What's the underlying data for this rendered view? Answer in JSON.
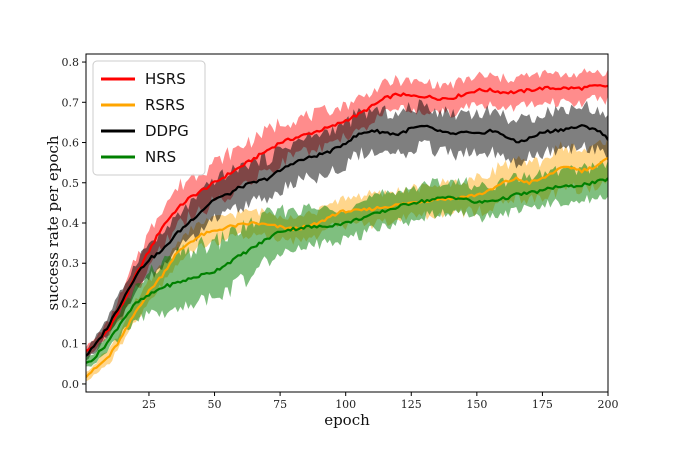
{
  "chart_data": {
    "type": "line",
    "title": "",
    "xlabel": "epoch",
    "ylabel": "success rate per epoch",
    "xlim": [
      1,
      200
    ],
    "ylim": [
      -0.02,
      0.82
    ],
    "xticks": [
      25,
      50,
      75,
      100,
      125,
      150,
      175,
      200
    ],
    "yticks": [
      0.0,
      0.1,
      0.2,
      0.3,
      0.4,
      0.5,
      0.6,
      0.7,
      0.8
    ],
    "xtick_labels": [
      "25",
      "50",
      "75",
      "100",
      "125",
      "150",
      "175",
      "200"
    ],
    "ytick_labels": [
      "0.0",
      "0.1",
      "0.2",
      "0.3",
      "0.4",
      "0.5",
      "0.6",
      "0.7",
      "0.8"
    ],
    "grid": false,
    "legend_position": "upper-left",
    "shaded_band": "mean ± std",
    "series": [
      {
        "name": "HSRS",
        "color": "#ff0000",
        "band_opacity": 0.45,
        "x": [
          1,
          5,
          10,
          15,
          20,
          25,
          30,
          35,
          40,
          45,
          50,
          55,
          60,
          65,
          70,
          75,
          80,
          85,
          90,
          95,
          100,
          105,
          110,
          115,
          120,
          125,
          130,
          135,
          140,
          145,
          150,
          155,
          160,
          165,
          170,
          175,
          180,
          185,
          190,
          195,
          200
        ],
        "mean": [
          0.08,
          0.1,
          0.14,
          0.2,
          0.27,
          0.33,
          0.39,
          0.43,
          0.46,
          0.48,
          0.5,
          0.52,
          0.54,
          0.56,
          0.58,
          0.6,
          0.61,
          0.62,
          0.63,
          0.64,
          0.655,
          0.67,
          0.69,
          0.71,
          0.72,
          0.715,
          0.715,
          0.71,
          0.71,
          0.72,
          0.73,
          0.73,
          0.725,
          0.725,
          0.73,
          0.735,
          0.735,
          0.735,
          0.735,
          0.74,
          0.74
        ],
        "std": [
          0.012,
          0.015,
          0.02,
          0.03,
          0.04,
          0.045,
          0.05,
          0.05,
          0.05,
          0.05,
          0.05,
          0.05,
          0.05,
          0.05,
          0.05,
          0.05,
          0.045,
          0.045,
          0.045,
          0.04,
          0.04,
          0.04,
          0.035,
          0.035,
          0.035,
          0.035,
          0.035,
          0.035,
          0.035,
          0.035,
          0.035,
          0.035,
          0.035,
          0.035,
          0.035,
          0.035,
          0.035,
          0.035,
          0.035,
          0.035,
          0.035
        ]
      },
      {
        "name": "RSRS",
        "color": "#ffa500",
        "band_opacity": 0.45,
        "x": [
          1,
          5,
          10,
          15,
          20,
          25,
          30,
          35,
          40,
          45,
          50,
          55,
          60,
          65,
          70,
          75,
          80,
          85,
          90,
          95,
          100,
          105,
          110,
          115,
          120,
          125,
          130,
          135,
          140,
          145,
          150,
          155,
          160,
          165,
          170,
          175,
          180,
          185,
          190,
          195,
          200
        ],
        "mean": [
          0.02,
          0.04,
          0.07,
          0.12,
          0.18,
          0.23,
          0.27,
          0.32,
          0.35,
          0.37,
          0.38,
          0.39,
          0.395,
          0.4,
          0.395,
          0.39,
          0.385,
          0.39,
          0.4,
          0.42,
          0.43,
          0.43,
          0.435,
          0.44,
          0.445,
          0.45,
          0.455,
          0.46,
          0.46,
          0.465,
          0.47,
          0.48,
          0.5,
          0.51,
          0.5,
          0.51,
          0.53,
          0.54,
          0.53,
          0.54,
          0.56
        ],
        "std": [
          0.01,
          0.015,
          0.02,
          0.02,
          0.025,
          0.025,
          0.025,
          0.025,
          0.03,
          0.03,
          0.03,
          0.03,
          0.03,
          0.03,
          0.03,
          0.03,
          0.03,
          0.03,
          0.03,
          0.03,
          0.035,
          0.035,
          0.035,
          0.035,
          0.035,
          0.035,
          0.035,
          0.04,
          0.04,
          0.04,
          0.04,
          0.045,
          0.045,
          0.045,
          0.045,
          0.045,
          0.05,
          0.05,
          0.05,
          0.05,
          0.05
        ]
      },
      {
        "name": "DDPG",
        "color": "#000000",
        "band_opacity": 0.5,
        "x": [
          1,
          5,
          10,
          15,
          20,
          25,
          30,
          35,
          40,
          45,
          50,
          55,
          60,
          65,
          70,
          75,
          80,
          85,
          90,
          95,
          100,
          105,
          110,
          115,
          120,
          125,
          130,
          135,
          140,
          145,
          150,
          155,
          160,
          165,
          170,
          175,
          180,
          185,
          190,
          195,
          200
        ],
        "mean": [
          0.07,
          0.1,
          0.15,
          0.21,
          0.27,
          0.31,
          0.33,
          0.37,
          0.4,
          0.43,
          0.46,
          0.47,
          0.49,
          0.5,
          0.51,
          0.53,
          0.55,
          0.56,
          0.57,
          0.58,
          0.6,
          0.62,
          0.63,
          0.625,
          0.62,
          0.635,
          0.64,
          0.63,
          0.62,
          0.625,
          0.62,
          0.63,
          0.62,
          0.6,
          0.61,
          0.625,
          0.63,
          0.635,
          0.64,
          0.635,
          0.61
        ],
        "std": [
          0.015,
          0.02,
          0.025,
          0.03,
          0.035,
          0.04,
          0.04,
          0.04,
          0.045,
          0.045,
          0.05,
          0.05,
          0.05,
          0.05,
          0.05,
          0.05,
          0.05,
          0.05,
          0.05,
          0.05,
          0.05,
          0.05,
          0.05,
          0.05,
          0.05,
          0.05,
          0.05,
          0.05,
          0.05,
          0.05,
          0.05,
          0.05,
          0.05,
          0.05,
          0.05,
          0.05,
          0.05,
          0.05,
          0.05,
          0.05,
          0.05
        ]
      },
      {
        "name": "NRS",
        "color": "#008000",
        "band_opacity": 0.5,
        "x": [
          1,
          5,
          10,
          15,
          20,
          25,
          30,
          35,
          40,
          45,
          50,
          55,
          60,
          65,
          70,
          75,
          80,
          85,
          90,
          95,
          100,
          105,
          110,
          115,
          120,
          125,
          130,
          135,
          140,
          145,
          150,
          155,
          160,
          165,
          170,
          175,
          180,
          185,
          190,
          195,
          200
        ],
        "mean": [
          0.05,
          0.07,
          0.11,
          0.16,
          0.2,
          0.22,
          0.24,
          0.25,
          0.26,
          0.27,
          0.28,
          0.3,
          0.32,
          0.34,
          0.36,
          0.38,
          0.385,
          0.39,
          0.39,
          0.395,
          0.4,
          0.41,
          0.42,
          0.43,
          0.44,
          0.45,
          0.455,
          0.46,
          0.465,
          0.46,
          0.45,
          0.455,
          0.46,
          0.47,
          0.475,
          0.48,
          0.49,
          0.49,
          0.495,
          0.5,
          0.51
        ],
        "std": [
          0.01,
          0.015,
          0.02,
          0.03,
          0.04,
          0.05,
          0.06,
          0.065,
          0.07,
          0.07,
          0.07,
          0.07,
          0.065,
          0.06,
          0.06,
          0.05,
          0.05,
          0.045,
          0.045,
          0.04,
          0.04,
          0.04,
          0.04,
          0.04,
          0.04,
          0.04,
          0.04,
          0.04,
          0.04,
          0.04,
          0.04,
          0.04,
          0.04,
          0.04,
          0.04,
          0.04,
          0.04,
          0.04,
          0.04,
          0.04,
          0.04
        ]
      }
    ]
  }
}
